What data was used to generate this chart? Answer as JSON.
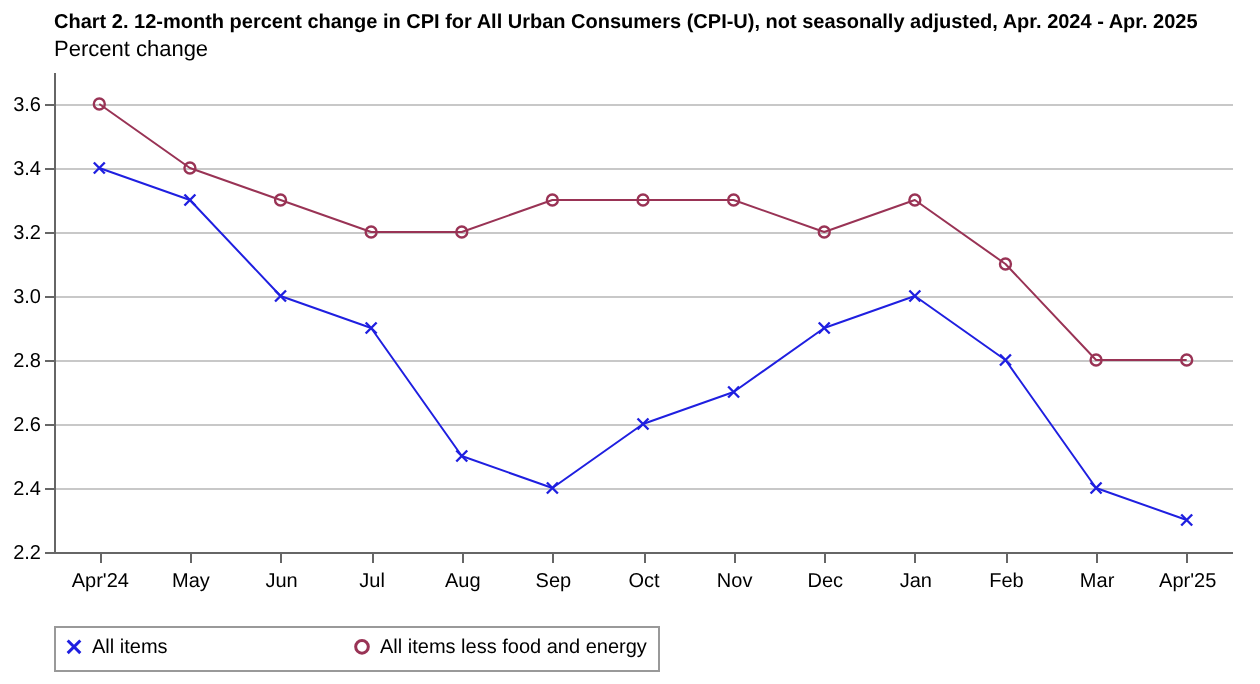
{
  "chart_data": {
    "type": "line",
    "title": "Chart 2. 12-month percent change in CPI for All Urban Consumers (CPI-U), not seasonally adjusted, Apr. 2024 - Apr. 2025",
    "ylabel": "Percent change",
    "categories": [
      "Apr'24",
      "May",
      "Jun",
      "Jul",
      "Aug",
      "Sep",
      "Oct",
      "Nov",
      "Dec",
      "Jan",
      "Feb",
      "Mar",
      "Apr'25"
    ],
    "series": [
      {
        "name": "All items",
        "color": "#1f1fe0",
        "marker": "cross",
        "values": [
          3.4,
          3.3,
          3.0,
          2.9,
          2.5,
          2.4,
          2.6,
          2.7,
          2.9,
          3.0,
          2.8,
          2.4,
          2.3
        ]
      },
      {
        "name": "All items less food and energy",
        "color": "#993355",
        "marker": "circle",
        "values": [
          3.6,
          3.4,
          3.3,
          3.2,
          3.2,
          3.3,
          3.3,
          3.3,
          3.2,
          3.3,
          3.1,
          2.8,
          2.8
        ]
      }
    ],
    "ylim": [
      2.2,
      3.7
    ],
    "yticks": [
      2.2,
      2.4,
      2.6,
      2.8,
      {
        "value": 3,
        "label": "3.0"
      },
      3.2,
      3.4,
      3.6
    ],
    "grid": "y",
    "legend": "bottom",
    "line_style": "solid"
  }
}
